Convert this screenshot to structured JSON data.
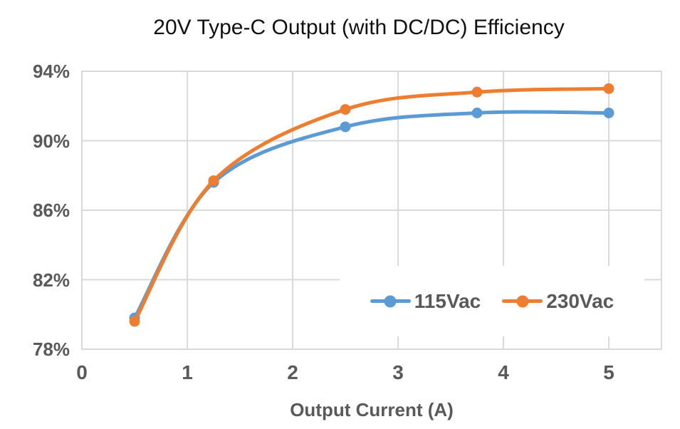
{
  "chart_data": {
    "type": "line",
    "title": "20V Type-C Output (with DC/DC) Efficiency",
    "xlabel": "Output Current (A)",
    "ylabel": "",
    "x": [
      0.5,
      1.25,
      2.5,
      3.75,
      5
    ],
    "series": [
      {
        "name": "115Vac",
        "color": "#5B9BD5",
        "values": [
          79.8,
          87.6,
          90.8,
          91.6,
          91.6
        ]
      },
      {
        "name": "230Vac",
        "color": "#ED7D31",
        "values": [
          79.6,
          87.7,
          91.8,
          92.8,
          93.0
        ]
      }
    ],
    "xlim": [
      0,
      5.5
    ],
    "ylim": [
      78,
      94
    ],
    "x_ticks": [
      0,
      1,
      2,
      3,
      4,
      5
    ],
    "x_tick_labels": [
      "0",
      "1",
      "2",
      "3",
      "4",
      "5"
    ],
    "y_ticks": [
      94,
      90,
      86,
      82,
      78
    ],
    "y_tick_labels": [
      "94%",
      "90%",
      "86%",
      "82%",
      "78%"
    ],
    "grid": true,
    "smooth": true,
    "legend_position": "inside-bottom-right",
    "legend_entries": [
      "115Vac",
      "230Vac"
    ],
    "colors": {
      "gridline": "#D9D9D9",
      "plot_border": "#D9D9D9",
      "axis_text": "#595959",
      "title_text": "#111111",
      "background": "#FFFFFF",
      "series_115vac": "#5B9BD5",
      "series_230vac": "#ED7D31"
    }
  }
}
